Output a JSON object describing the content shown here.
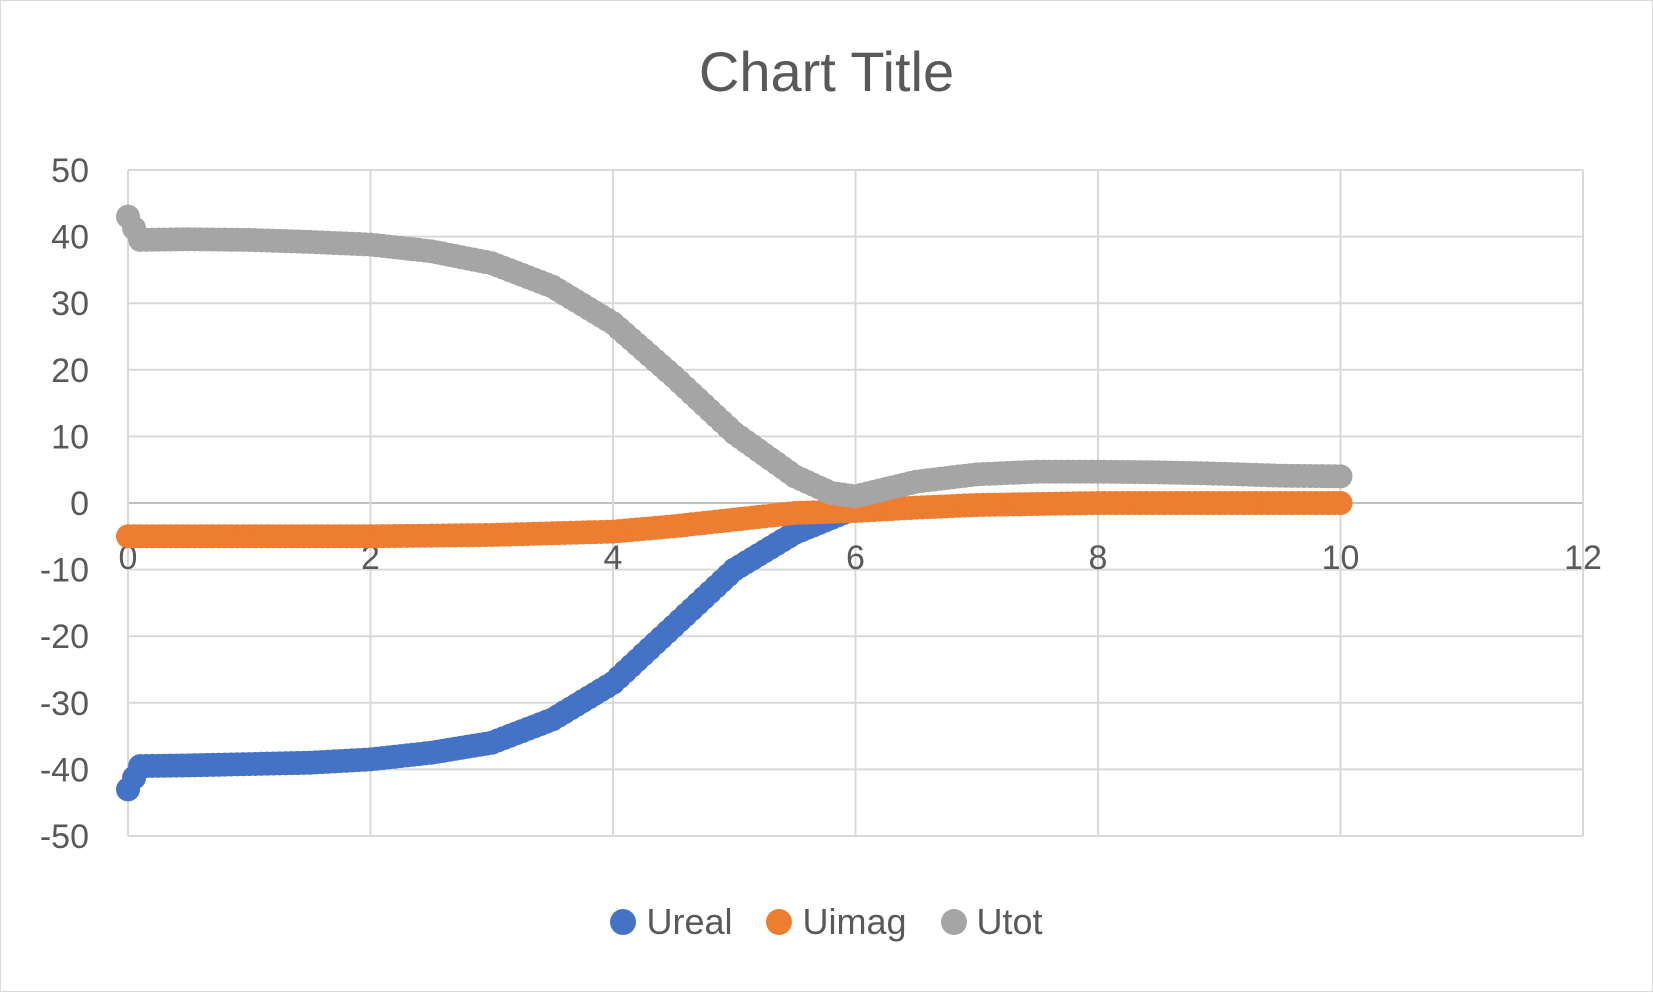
{
  "chart_data": {
    "type": "scatter",
    "title": "Chart Title",
    "xlabel": "",
    "ylabel": "",
    "xlim": [
      0,
      12
    ],
    "ylim": [
      -50,
      50
    ],
    "xticks": [
      0,
      2,
      4,
      6,
      8,
      10,
      12
    ],
    "yticks": [
      50,
      40,
      30,
      20,
      10,
      0,
      -10,
      -20,
      -30,
      -40,
      -50
    ],
    "grid": true,
    "legend_position": "bottom",
    "series": [
      {
        "name": "Ureal",
        "color": "#4472c4",
        "points": [
          [
            0,
            -43
          ],
          [
            0.1,
            -39.5
          ],
          [
            0.5,
            -39.4
          ],
          [
            1,
            -39.2
          ],
          [
            1.5,
            -39
          ],
          [
            2,
            -38.5
          ],
          [
            2.5,
            -37.5
          ],
          [
            3,
            -36
          ],
          [
            3.5,
            -32.5
          ],
          [
            4,
            -27
          ],
          [
            4.5,
            -18.5
          ],
          [
            5,
            -10
          ],
          [
            5.5,
            -4.5
          ],
          [
            5.9,
            -1.5
          ]
        ]
      },
      {
        "name": "Uimag",
        "color": "#ed7d31",
        "points": [
          [
            0,
            -5
          ],
          [
            1,
            -5
          ],
          [
            2,
            -5
          ],
          [
            3,
            -4.8
          ],
          [
            4,
            -4.3
          ],
          [
            4.5,
            -3.5
          ],
          [
            5,
            -2.5
          ],
          [
            5.5,
            -1.5
          ],
          [
            6,
            -1.2
          ],
          [
            6.5,
            -0.7
          ],
          [
            7,
            -0.3
          ],
          [
            8,
            0
          ],
          [
            9,
            0
          ],
          [
            10,
            0
          ]
        ]
      },
      {
        "name": "Utot",
        "color": "#a5a5a5",
        "points": [
          [
            0,
            43
          ],
          [
            0.1,
            39.5
          ],
          [
            0.5,
            39.6
          ],
          [
            1,
            39.5
          ],
          [
            1.5,
            39.2
          ],
          [
            2,
            38.8
          ],
          [
            2.5,
            37.8
          ],
          [
            3,
            36
          ],
          [
            3.5,
            32.5
          ],
          [
            4,
            27
          ],
          [
            4.5,
            19
          ],
          [
            5,
            10.5
          ],
          [
            5.5,
            4
          ],
          [
            5.8,
            1.5
          ],
          [
            6,
            1
          ],
          [
            6.5,
            3.2
          ],
          [
            7,
            4.3
          ],
          [
            7.5,
            4.7
          ],
          [
            8,
            4.7
          ],
          [
            8.5,
            4.6
          ],
          [
            9,
            4.4
          ],
          [
            9.5,
            4.1
          ],
          [
            10,
            4
          ]
        ]
      }
    ]
  }
}
